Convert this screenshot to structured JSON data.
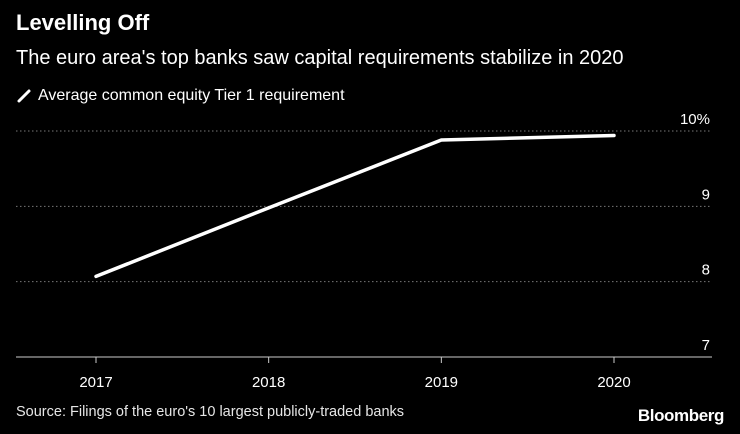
{
  "chart_data": {
    "type": "line",
    "title": "Levelling Off",
    "subtitle": "The euro area's top banks saw capital requirements stabilize in 2020",
    "categories": [
      "2017",
      "2018",
      "2019",
      "2020"
    ],
    "series": [
      {
        "name": "Average common equity Tier 1 requirement",
        "values": [
          8.07,
          8.98,
          9.88,
          9.94
        ],
        "color": "#ffffff"
      }
    ],
    "ylim": [
      7,
      10
    ],
    "yticks": [
      "7",
      "8",
      "9",
      "10%"
    ],
    "xlabel": "",
    "ylabel": "",
    "grid": true,
    "axis_position": "right",
    "source": "Source: Filings of the euro's 10 largest publicly-traded banks",
    "brand": "Bloomberg"
  },
  "colors": {
    "background": "#000000",
    "text": "#ffffff",
    "grid": "#777777"
  }
}
